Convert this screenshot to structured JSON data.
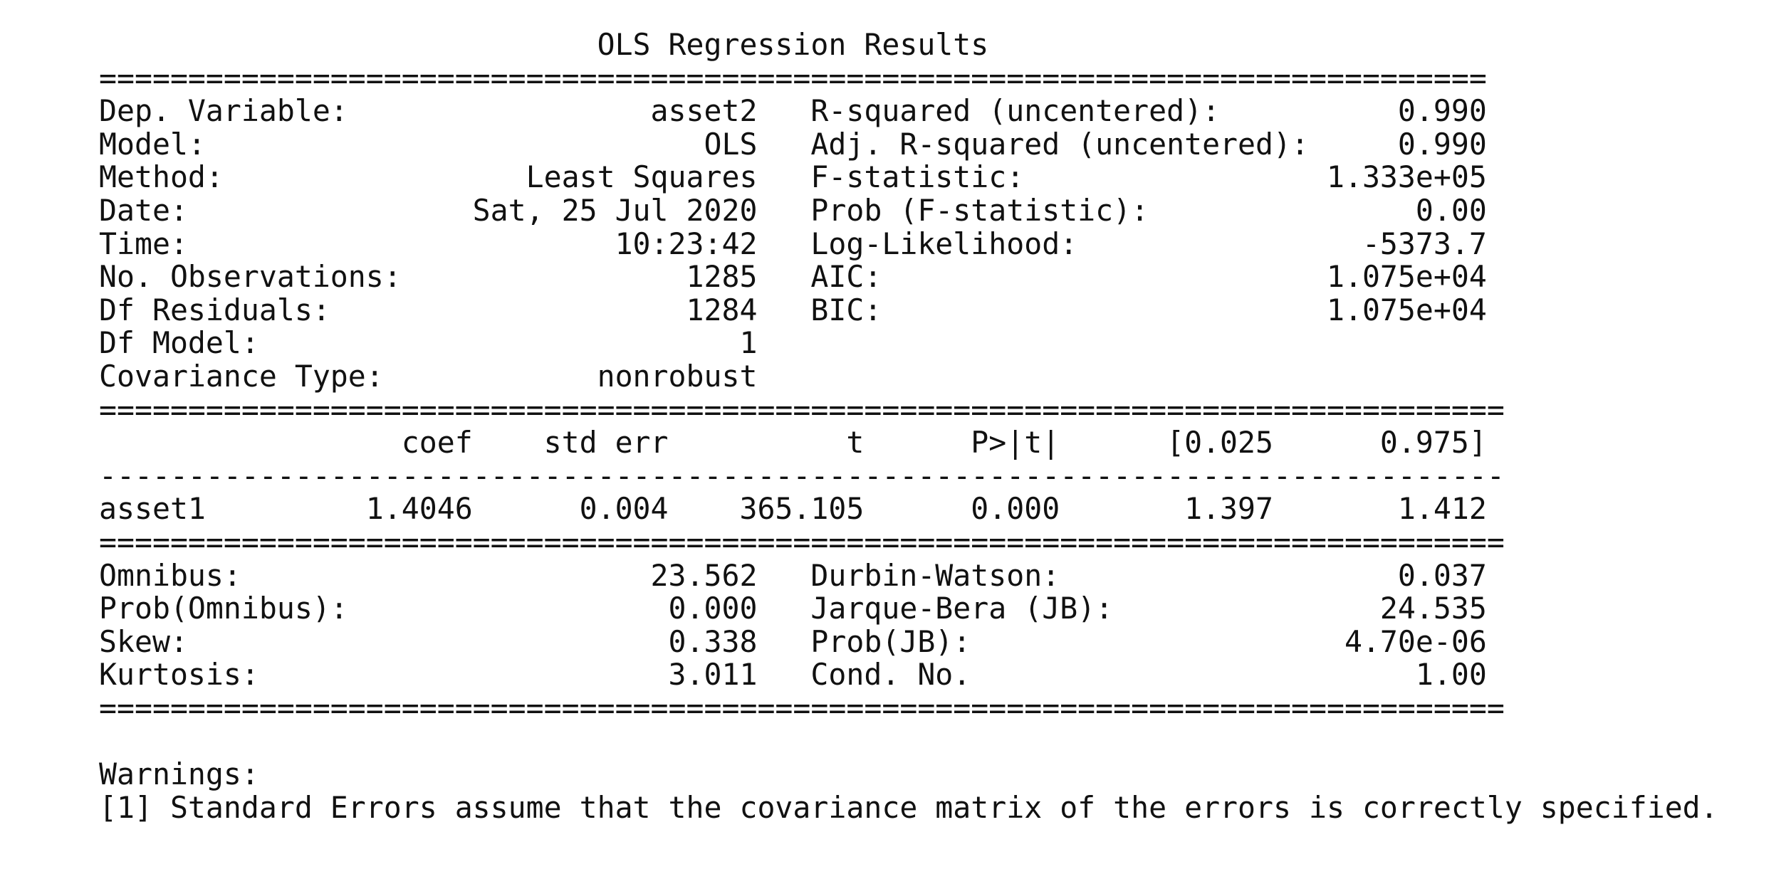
{
  "title": "OLS Regression Results",
  "lines": [
    "==============================================================================",
    "Dep. Variable:                 asset2   R-squared (uncentered):          0.990",
    "Model:                            OLS   Adj. R-squared (uncentered):     0.990",
    "Method:                 Least Squares   F-statistic:                 1.333e+05",
    "Date:                Sat, 25 Jul 2020   Prob (F-statistic):               0.00",
    "Time:                        10:23:42   Log-Likelihood:                -5373.7",
    "No. Observations:                1285   AIC:                         1.075e+04",
    "Df Residuals:                    1284   BIC:                         1.075e+04",
    "Df Model:                           1",
    "Covariance Type:            nonrobust",
    "===============================================================================",
    "                 coef    std err          t      P>|t|      [0.025      0.975]",
    "-------------------------------------------------------------------------------",
    "asset1         1.4046      0.004    365.105      0.000       1.397       1.412",
    "===============================================================================",
    "Omnibus:                       23.562   Durbin-Watson:                   0.037",
    "Prob(Omnibus):                  0.000   Jarque-Bera (JB):               24.535",
    "Skew:                           0.338   Prob(JB):                     4.70e-06",
    "Kurtosis:                       3.011   Cond. No.                         1.00",
    "===============================================================================",
    "",
    "Warnings:",
    "[1] Standard Errors assume that the covariance matrix of the errors is correctly specified."
  ]
}
